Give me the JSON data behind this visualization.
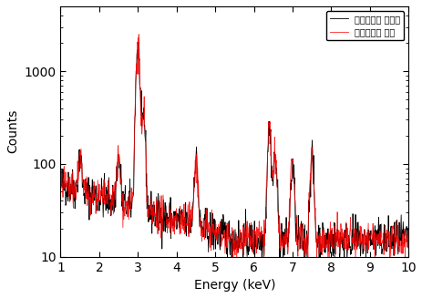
{
  "xlabel": "Energy (keV)",
  "ylabel": "Counts",
  "xmin": 1,
  "xmax": 10,
  "ymin": 10,
  "ymax": 5000,
  "xticks": [
    1,
    2,
    3,
    4,
    5,
    6,
    7,
    8,
    9,
    10
  ],
  "yticks": [
    10,
    100,
    1000
  ],
  "legend_labels": [
    "감소우라늄 다스크",
    "농축우라늄 폠릿"
  ],
  "line1_color": "black",
  "line2_color": "red",
  "seed": 42,
  "background_color": "#ffffff",
  "figsize": [
    4.64,
    3.27
  ],
  "dpi": 100
}
